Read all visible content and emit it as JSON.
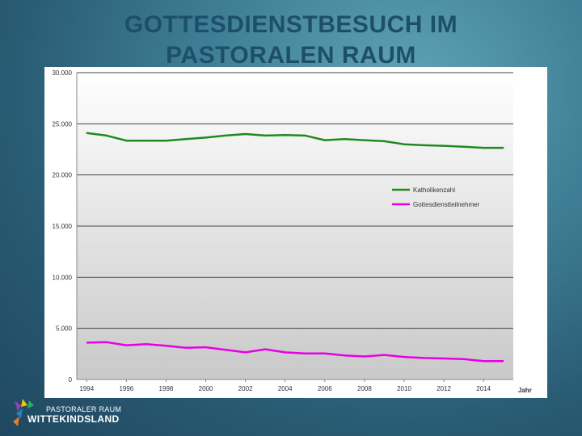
{
  "slide": {
    "title_line1": "GOTTESDIENSTBESUCH IM",
    "title_line2": "PASTORALEN  RAUM"
  },
  "logo": {
    "line1": "PASTORALER RAUM",
    "line2": "WITTEKINDSLAND"
  },
  "chart_data": {
    "type": "line",
    "title": "",
    "xlabel": "Jahr",
    "ylabel": "",
    "ylim": [
      0,
      30000
    ],
    "xlim": [
      1993.5,
      2015.5
    ],
    "y_ticks": [
      0,
      5000,
      10000,
      15000,
      20000,
      25000,
      30000
    ],
    "y_tick_labels": [
      "0",
      "5.000",
      "10.000",
      "15.000",
      "20.000",
      "25.000",
      "30.000"
    ],
    "x_ticks": [
      1994,
      1996,
      1998,
      2000,
      2002,
      2004,
      2006,
      2008,
      2010,
      2012,
      2014
    ],
    "x_tick_labels": [
      "1994",
      "1996",
      "1998",
      "2000",
      "2002",
      "2004",
      "2006",
      "2008",
      "2010",
      "2012",
      "2014"
    ],
    "grid": true,
    "legend_position": "right-middle",
    "x": [
      1994,
      1995,
      1996,
      1997,
      1998,
      1999,
      2000,
      2001,
      2002,
      2003,
      2004,
      2005,
      2006,
      2007,
      2008,
      2009,
      2010,
      2011,
      2012,
      2013,
      2014,
      2015
    ],
    "series": [
      {
        "name": "Katholikenzahl",
        "color": "#1f8a1f",
        "values": [
          24100,
          23850,
          23350,
          23350,
          23350,
          23500,
          23650,
          23850,
          24000,
          23850,
          23900,
          23850,
          23400,
          23500,
          23400,
          23300,
          23000,
          22900,
          22850,
          22750,
          22650,
          22650
        ]
      },
      {
        "name": "Gottesdienstteilnehmer",
        "color": "#e600e6",
        "values": [
          3600,
          3650,
          3350,
          3450,
          3300,
          3100,
          3150,
          2900,
          2650,
          2950,
          2650,
          2550,
          2550,
          2350,
          2250,
          2400,
          2200,
          2100,
          2050,
          2000,
          1800,
          1800
        ]
      }
    ]
  }
}
